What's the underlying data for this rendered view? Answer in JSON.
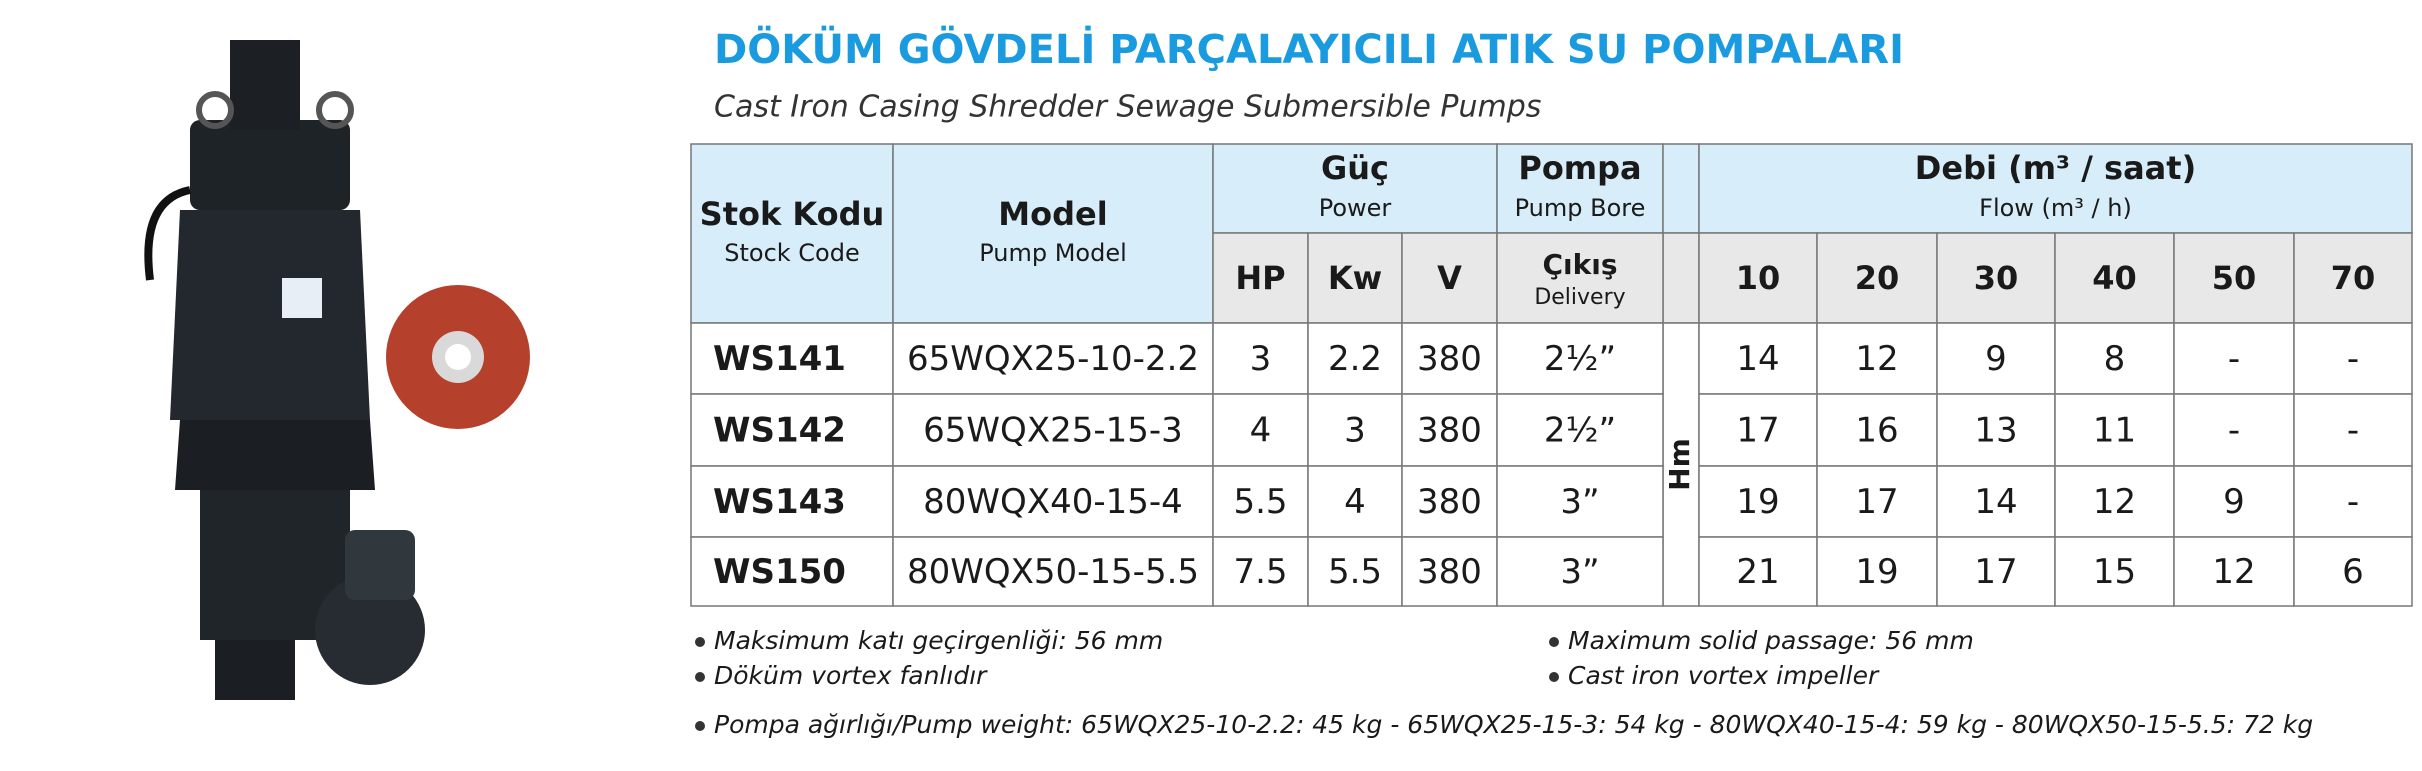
{
  "title": "DÖKÜM GÖVDELİ PARÇALAYICILI ATIK SU POMPALARI",
  "subtitle": "Cast Iron Casing Shredder Sewage Submersible Pumps",
  "table": {
    "headers": {
      "stock_code": {
        "tr": "Stok Kodu",
        "en": "Stock Code"
      },
      "model": {
        "tr": "Model",
        "en": "Pump Model"
      },
      "power": {
        "tr": "Güç",
        "en": "Power"
      },
      "power_units": [
        "HP",
        "Kw",
        "V"
      ],
      "pump": {
        "tr": "Pompa",
        "en": "Pump Bore"
      },
      "delivery": {
        "tr": "Çıkış",
        "en": "Delivery"
      },
      "head": "Hm",
      "flow": {
        "tr": "Debi (m³ / saat)",
        "en": "Flow (m³ / h)"
      },
      "flow_values": [
        "10",
        "20",
        "30",
        "40",
        "50",
        "70"
      ]
    },
    "rows": [
      [
        "WS141",
        "65WQX25-10-2.2",
        "3",
        "2.2",
        "380",
        "2½”",
        "14",
        "12",
        "9",
        "8",
        "-",
        "-"
      ],
      [
        "WS142",
        "65WQX25-15-3",
        "4",
        "3",
        "380",
        "2½”",
        "17",
        "16",
        "13",
        "11",
        "-",
        "-"
      ],
      [
        "WS143",
        "80WQX40-15-4",
        "5.5",
        "4",
        "380",
        "3”",
        "19",
        "17",
        "14",
        "12",
        "9",
        "-"
      ],
      [
        "WS150",
        "80WQX50-15-5.5",
        "7.5",
        "5.5",
        "380",
        "3”",
        "21",
        "19",
        "17",
        "15",
        "12",
        "6"
      ]
    ]
  },
  "notes": {
    "left": [
      "Maksimum katı geçirgenliği: 56 mm",
      "Döküm vortex fanlıdır"
    ],
    "right": [
      "Maximum solid passage: 56 mm",
      "Cast iron vortex impeller"
    ],
    "weight": "Pompa ağırlığı/Pump weight: 65WQX25-10-2.2: 45 kg - 65WQX25-15-3: 54 kg - 80WQX40-15-4: 59 kg - 80WQX50-15-5.5: 72 kg"
  }
}
